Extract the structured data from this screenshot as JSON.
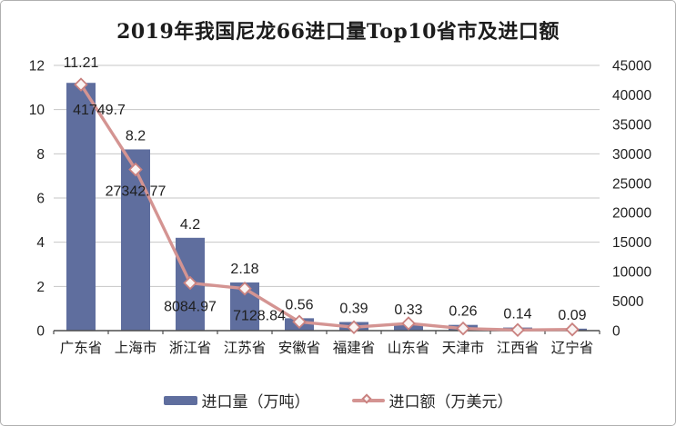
{
  "colors": {
    "bar": "#5f6e9e",
    "line": "#d49492",
    "marker_fill": "#faf4f3",
    "marker_stroke": "#c9817f",
    "grid": "#c6c6c6",
    "axis": "#4d4d4d",
    "text": "#1f1f1f",
    "frame_border": "#b0b0b0"
  },
  "chart_data": {
    "type": "bar",
    "title": "2019年我国尼龙66进口量Top10省市及进口额",
    "categories": [
      "广东省",
      "上海市",
      "浙江省",
      "江苏省",
      "安徽省",
      "福建省",
      "山东省",
      "天津市",
      "江西省",
      "辽宁省"
    ],
    "series": [
      {
        "name": "进口量（万吨）",
        "type": "bar",
        "axis": "left",
        "values": [
          11.21,
          8.2,
          4.2,
          2.18,
          0.56,
          0.39,
          0.33,
          0.26,
          0.14,
          0.09
        ],
        "labels": [
          "11.21",
          "8.2",
          "4.2",
          "2.18",
          "0.56",
          "0.39",
          "0.33",
          "0.26",
          "0.14",
          "0.09"
        ]
      },
      {
        "name": "进口额（万美元）",
        "type": "line",
        "axis": "right",
        "values": [
          41749.7,
          27342.77,
          8084.97,
          7128.84,
          1500,
          580,
          1230,
          360,
          110,
          200
        ],
        "labels": [
          "41749.7",
          "27342.77",
          "8084.97",
          "7128.84",
          "",
          "",
          "",
          "",
          "",
          ""
        ]
      }
    ],
    "left_axis": {
      "min": 0,
      "max": 12,
      "step": 2,
      "ticks": [
        "0",
        "2",
        "4",
        "6",
        "8",
        "10",
        "12"
      ]
    },
    "right_axis": {
      "min": 0,
      "max": 45000,
      "step": 5000,
      "ticks": [
        "0",
        "5000",
        "10000",
        "15000",
        "20000",
        "25000",
        "30000",
        "35000",
        "40000",
        "45000"
      ]
    },
    "grid": "horizontal",
    "legend_position": "bottom"
  }
}
